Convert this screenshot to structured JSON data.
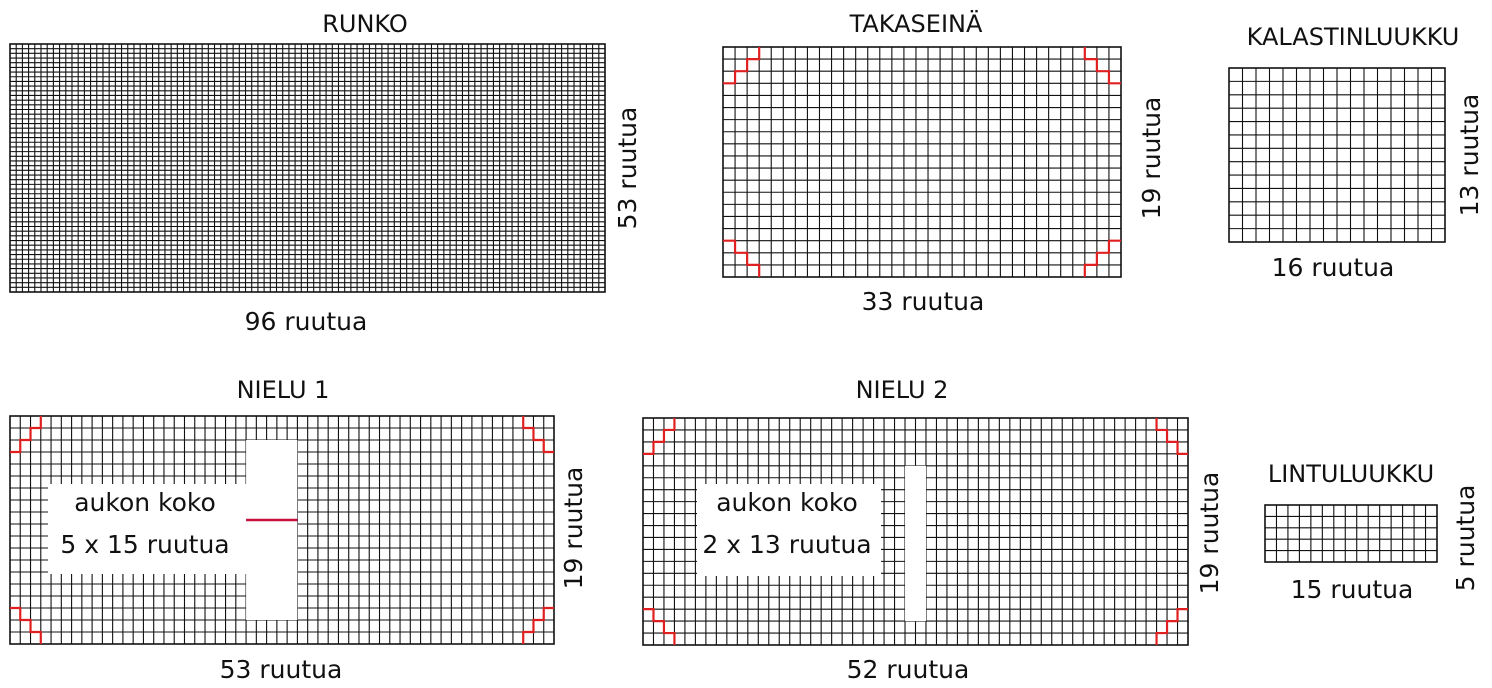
{
  "pieces": [
    {
      "id": "runko",
      "title": "RUNKO",
      "width_label": "96 ruutua",
      "height_label": "53 ruutua",
      "cols": 96,
      "rows": 53,
      "corners": false
    },
    {
      "id": "takaseina",
      "title": "TAKASEINÄ",
      "width_label": "33 ruutua",
      "height_label": "19 ruutua",
      "cols": 33,
      "rows": 19,
      "corners": true
    },
    {
      "id": "kalastinluukku",
      "title": "KALASTINLUUKKU",
      "width_label": "16 ruutua",
      "height_label": "13 ruutua",
      "cols": 16,
      "rows": 13,
      "corners": false
    },
    {
      "id": "nielu1",
      "title": "NIELU 1",
      "width_label": "53 ruutua",
      "height_label": "19 ruutua",
      "cols": 53,
      "rows": 19,
      "corners": true,
      "hole_line1": "aukon koko",
      "hole_line2": "5 x 15 ruutua",
      "hole_cols": 5,
      "hole_rows": 15
    },
    {
      "id": "nielu2",
      "title": "NIELU 2",
      "width_label": "52 ruutua",
      "height_label": "19 ruutua",
      "cols": 52,
      "rows": 19,
      "corners": true,
      "hole_line1": "aukon koko",
      "hole_line2": "2 x 13 ruutua",
      "hole_cols": 2,
      "hole_rows": 13
    },
    {
      "id": "lintuluukku",
      "title": "LINTULUUKKU",
      "width_label": "15 ruutua",
      "height_label": "5 ruutua",
      "cols": 15,
      "rows": 5,
      "corners": false
    }
  ],
  "colors": {
    "grid": "#111111",
    "accent": "#e02020",
    "cut_line": "#c8103c"
  }
}
